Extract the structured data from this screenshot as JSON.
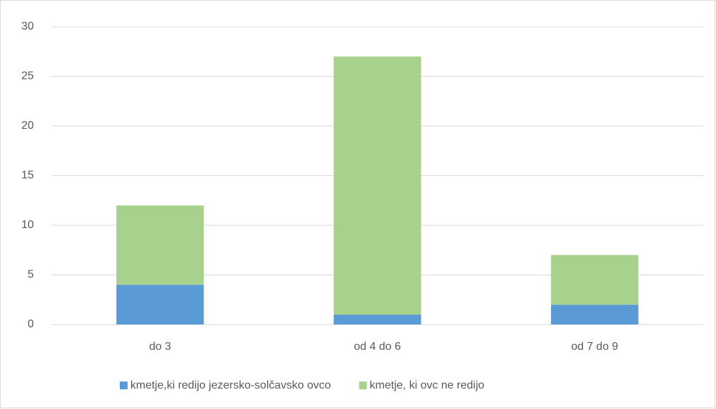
{
  "chart_data": {
    "type": "bar",
    "stacked": true,
    "categories": [
      "do 3",
      "od 4 do 6",
      "od 7 do 9"
    ],
    "series": [
      {
        "name": "kmetje,ki redijo jezersko-solčavsko ovco",
        "color": "#5b9bd5",
        "values": [
          4,
          1,
          2
        ]
      },
      {
        "name": "kmetje, ki ovc ne redijo",
        "color": "#a9d18e",
        "values": [
          8,
          26,
          5
        ]
      }
    ],
    "ylim": [
      0,
      30
    ],
    "yticks": [
      0,
      5,
      10,
      15,
      20,
      25,
      30
    ],
    "grid": true,
    "legend": "bottom"
  }
}
